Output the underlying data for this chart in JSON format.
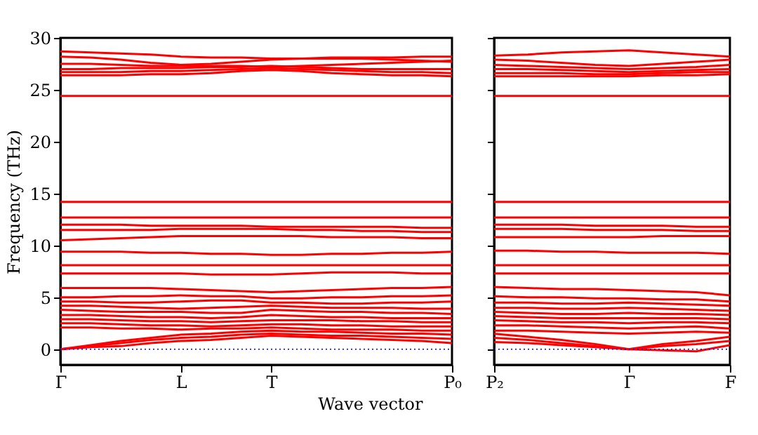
{
  "chart_data": [
    {
      "type": "line",
      "xlabel": "Wave vector",
      "ylabel": "Frequency (THz)",
      "categories": [
        "Γ",
        null,
        null,
        null,
        "L",
        null,
        null,
        "T",
        null,
        null,
        null,
        null,
        null,
        "P₀"
      ],
      "ylim": [
        -1.5,
        30
      ],
      "yticks": [
        0,
        5,
        10,
        15,
        20,
        25,
        30
      ],
      "ref_lines": [
        {
          "axis": "y",
          "value": 0,
          "color": "#0000ff",
          "line_style": "dotted"
        }
      ],
      "series": [
        {
          "color": "#ff0000",
          "values": [
            28.7,
            28.6,
            28.5,
            28.4,
            28.2,
            28.1,
            28.1,
            28.0,
            28.0,
            28.1,
            28.1,
            28.1,
            28.2,
            28.2
          ]
        },
        {
          "color": "#ff0000",
          "values": [
            28.2,
            28.1,
            27.9,
            27.6,
            27.4,
            27.5,
            27.7,
            27.9,
            28.0,
            28.0,
            28.0,
            27.9,
            27.8,
            27.7
          ]
        },
        {
          "color": "#ff0000",
          "values": [
            27.5,
            27.5,
            27.4,
            27.3,
            27.3,
            27.3,
            27.3,
            27.2,
            27.3,
            27.4,
            27.5,
            27.6,
            27.7,
            27.8
          ]
        },
        {
          "color": "#ff0000",
          "values": [
            27.0,
            27.0,
            27.1,
            27.1,
            27.1,
            27.2,
            27.2,
            27.3,
            27.2,
            27.1,
            27.0,
            27.0,
            27.0,
            27.0
          ]
        },
        {
          "color": "#ff0000",
          "values": [
            26.7,
            26.7,
            26.7,
            26.8,
            26.8,
            26.9,
            27.0,
            27.1,
            27.0,
            26.9,
            26.8,
            26.7,
            26.7,
            26.6
          ]
        },
        {
          "color": "#ff0000",
          "values": [
            26.4,
            26.4,
            26.4,
            26.5,
            26.5,
            26.6,
            26.8,
            26.9,
            26.8,
            26.6,
            26.5,
            26.4,
            26.4,
            26.3
          ]
        },
        {
          "color": "#ff0000",
          "values": [
            24.4,
            24.4,
            24.4,
            24.4,
            24.4,
            24.4,
            24.4,
            24.4,
            24.4,
            24.4,
            24.4,
            24.4,
            24.4,
            24.4
          ]
        },
        {
          "color": "#ff0000",
          "values": [
            14.2,
            14.2,
            14.2,
            14.2,
            14.2,
            14.2,
            14.2,
            14.2,
            14.2,
            14.2,
            14.2,
            14.2,
            14.2,
            14.2
          ]
        },
        {
          "color": "#ff0000",
          "values": [
            12.7,
            12.7,
            12.7,
            12.7,
            12.7,
            12.7,
            12.7,
            12.7,
            12.7,
            12.7,
            12.7,
            12.7,
            12.7,
            12.7
          ]
        },
        {
          "color": "#ff0000",
          "values": [
            12.0,
            12.0,
            12.0,
            11.9,
            11.9,
            11.9,
            11.9,
            11.8,
            11.8,
            11.8,
            11.8,
            11.8,
            11.7,
            11.7
          ]
        },
        {
          "color": "#ff0000",
          "values": [
            11.5,
            11.5,
            11.5,
            11.5,
            11.6,
            11.6,
            11.6,
            11.6,
            11.5,
            11.5,
            11.4,
            11.4,
            11.3,
            11.3
          ]
        },
        {
          "color": "#ff0000",
          "values": [
            10.5,
            10.6,
            10.7,
            10.8,
            10.9,
            10.9,
            10.9,
            10.9,
            10.9,
            10.8,
            10.8,
            10.8,
            10.7,
            10.7
          ]
        },
        {
          "color": "#ff0000",
          "values": [
            9.4,
            9.4,
            9.4,
            9.3,
            9.3,
            9.2,
            9.2,
            9.1,
            9.1,
            9.2,
            9.2,
            9.3,
            9.3,
            9.4
          ]
        },
        {
          "color": "#ff0000",
          "values": [
            8.1,
            8.1,
            8.1,
            8.1,
            8.1,
            8.1,
            8.1,
            8.1,
            8.1,
            8.1,
            8.1,
            8.1,
            8.1,
            8.1
          ]
        },
        {
          "color": "#ff0000",
          "values": [
            7.3,
            7.3,
            7.3,
            7.3,
            7.3,
            7.2,
            7.2,
            7.2,
            7.3,
            7.4,
            7.4,
            7.4,
            7.3,
            7.3
          ]
        },
        {
          "color": "#ff0000",
          "values": [
            5.9,
            5.9,
            5.9,
            5.9,
            5.8,
            5.7,
            5.6,
            5.5,
            5.6,
            5.7,
            5.8,
            5.9,
            5.9,
            6.0
          ]
        },
        {
          "color": "#ff0000",
          "values": [
            5.0,
            5.0,
            5.1,
            5.1,
            5.2,
            5.1,
            5.1,
            4.9,
            4.9,
            5.0,
            5.0,
            5.1,
            5.1,
            5.2
          ]
        },
        {
          "color": "#ff0000",
          "values": [
            4.6,
            4.6,
            4.5,
            4.5,
            4.6,
            4.7,
            4.7,
            4.5,
            4.5,
            4.4,
            4.4,
            4.5,
            4.5,
            4.6
          ]
        },
        {
          "color": "#ff0000",
          "values": [
            4.2,
            4.2,
            4.1,
            4.0,
            3.9,
            4.0,
            4.1,
            4.2,
            4.1,
            4.0,
            4.0,
            4.0,
            3.9,
            3.9
          ]
        },
        {
          "color": "#ff0000",
          "values": [
            3.8,
            3.7,
            3.6,
            3.6,
            3.6,
            3.5,
            3.5,
            3.8,
            3.7,
            3.6,
            3.6,
            3.5,
            3.5,
            3.4
          ]
        },
        {
          "color": "#ff0000",
          "values": [
            3.3,
            3.3,
            3.2,
            3.1,
            3.1,
            3.0,
            3.1,
            3.3,
            3.2,
            3.1,
            3.1,
            3.0,
            3.0,
            3.0
          ]
        },
        {
          "color": "#ff0000",
          "values": [
            2.9,
            2.9,
            2.8,
            2.7,
            2.7,
            2.6,
            2.7,
            2.8,
            2.8,
            2.8,
            2.7,
            2.7,
            2.6,
            2.6
          ]
        },
        {
          "color": "#ff0000",
          "values": [
            2.5,
            2.5,
            2.4,
            2.3,
            2.3,
            2.2,
            2.3,
            2.4,
            2.4,
            2.3,
            2.3,
            2.2,
            2.2,
            2.2
          ]
        },
        {
          "color": "#ff0000",
          "values": [
            2.1,
            2.1,
            2.0,
            2.0,
            1.9,
            2.0,
            2.0,
            2.1,
            2.0,
            1.9,
            1.9,
            1.9,
            1.8,
            1.8
          ]
        },
        {
          "color": "#ff0000",
          "values": [
            0,
            0.4,
            0.8,
            1.1,
            1.4,
            1.5,
            1.7,
            1.8,
            1.7,
            1.7,
            1.6,
            1.5,
            1.5,
            1.4
          ]
        },
        {
          "color": "#ff0000",
          "values": [
            0,
            0.3,
            0.6,
            0.9,
            1.1,
            1.2,
            1.4,
            1.5,
            1.4,
            1.3,
            1.3,
            1.2,
            1.1,
            1.0
          ]
        },
        {
          "color": "#ff0000",
          "values": [
            0,
            0.2,
            0.3,
            0.6,
            0.8,
            0.9,
            1.1,
            1.3,
            1.2,
            1.1,
            1.0,
            0.9,
            0.8,
            0.6
          ]
        }
      ]
    },
    {
      "type": "line",
      "tick_labels": "x",
      "categories": [
        "P₂",
        null,
        null,
        null,
        "Γ",
        null,
        null,
        "F"
      ],
      "ylim": [
        -1.5,
        30
      ],
      "yticks": [
        0,
        5,
        10,
        15,
        20,
        25,
        30
      ],
      "ref_lines": [
        {
          "axis": "y",
          "value": 0,
          "color": "#0000ff",
          "line_style": "dotted"
        }
      ],
      "series": [
        {
          "color": "#ff0000",
          "values": [
            28.3,
            28.4,
            28.6,
            28.7,
            28.8,
            28.6,
            28.4,
            28.2
          ]
        },
        {
          "color": "#ff0000",
          "values": [
            27.9,
            27.8,
            27.6,
            27.4,
            27.3,
            27.5,
            27.7,
            27.9
          ]
        },
        {
          "color": "#ff0000",
          "values": [
            27.4,
            27.3,
            27.2,
            27.1,
            27.0,
            27.1,
            27.2,
            27.4
          ]
        },
        {
          "color": "#ff0000",
          "values": [
            27.0,
            27.0,
            26.9,
            26.8,
            26.7,
            26.8,
            26.9,
            27.0
          ]
        },
        {
          "color": "#ff0000",
          "values": [
            26.6,
            26.6,
            26.6,
            26.5,
            26.5,
            26.6,
            26.7,
            26.7
          ]
        },
        {
          "color": "#ff0000",
          "values": [
            26.3,
            26.3,
            26.3,
            26.3,
            26.3,
            26.4,
            26.4,
            26.5
          ]
        },
        {
          "color": "#ff0000",
          "values": [
            24.4,
            24.4,
            24.4,
            24.4,
            24.4,
            24.4,
            24.4,
            24.4
          ]
        },
        {
          "color": "#ff0000",
          "values": [
            14.2,
            14.2,
            14.2,
            14.2,
            14.2,
            14.2,
            14.2,
            14.2
          ]
        },
        {
          "color": "#ff0000",
          "values": [
            12.7,
            12.7,
            12.7,
            12.7,
            12.7,
            12.7,
            12.7,
            12.7
          ]
        },
        {
          "color": "#ff0000",
          "values": [
            12.0,
            12.0,
            12.0,
            11.9,
            11.9,
            11.9,
            11.8,
            11.8
          ]
        },
        {
          "color": "#ff0000",
          "values": [
            11.6,
            11.6,
            11.6,
            11.5,
            11.5,
            11.5,
            11.4,
            11.4
          ]
        },
        {
          "color": "#ff0000",
          "values": [
            10.8,
            10.8,
            10.8,
            10.8,
            10.8,
            10.9,
            10.9,
            10.9
          ]
        },
        {
          "color": "#ff0000",
          "values": [
            9.5,
            9.5,
            9.4,
            9.4,
            9.3,
            9.3,
            9.3,
            9.2
          ]
        },
        {
          "color": "#ff0000",
          "values": [
            8.1,
            8.1,
            8.1,
            8.1,
            8.1,
            8.1,
            8.1,
            8.1
          ]
        },
        {
          "color": "#ff0000",
          "values": [
            7.3,
            7.3,
            7.3,
            7.3,
            7.3,
            7.3,
            7.3,
            7.3
          ]
        },
        {
          "color": "#ff0000",
          "values": [
            6.0,
            5.9,
            5.8,
            5.8,
            5.7,
            5.6,
            5.5,
            5.2
          ]
        },
        {
          "color": "#ff0000",
          "values": [
            5.1,
            5.0,
            5.0,
            4.9,
            4.9,
            4.8,
            4.8,
            4.6
          ]
        },
        {
          "color": "#ff0000",
          "values": [
            4.5,
            4.5,
            4.4,
            4.4,
            4.5,
            4.4,
            4.3,
            4.2
          ]
        },
        {
          "color": "#ff0000",
          "values": [
            4.0,
            4.0,
            3.9,
            3.9,
            4.0,
            3.9,
            3.8,
            3.7
          ]
        },
        {
          "color": "#ff0000",
          "values": [
            3.6,
            3.5,
            3.4,
            3.4,
            3.5,
            3.4,
            3.4,
            3.3
          ]
        },
        {
          "color": "#ff0000",
          "values": [
            3.2,
            3.1,
            3.0,
            3.0,
            3.0,
            3.0,
            3.0,
            2.9
          ]
        },
        {
          "color": "#ff0000",
          "values": [
            2.8,
            2.7,
            2.6,
            2.6,
            2.5,
            2.6,
            2.6,
            2.5
          ]
        },
        {
          "color": "#ff0000",
          "values": [
            2.3,
            2.3,
            2.2,
            2.1,
            2.0,
            2.1,
            2.2,
            2.0
          ]
        },
        {
          "color": "#ff0000",
          "values": [
            1.8,
            1.8,
            1.7,
            1.6,
            1.5,
            1.6,
            1.7,
            1.6
          ]
        },
        {
          "color": "#ff0000",
          "values": [
            1.5,
            1.2,
            0.9,
            0.5,
            0,
            0.5,
            0.8,
            1.2
          ]
        },
        {
          "color": "#ff0000",
          "values": [
            1.1,
            0.9,
            0.6,
            0.3,
            0,
            0.3,
            0.5,
            0.8
          ]
        },
        {
          "color": "#ff0000",
          "values": [
            0.7,
            0.6,
            0.4,
            0.2,
            0,
            -0.1,
            -0.2,
            0.4
          ]
        }
      ]
    }
  ]
}
